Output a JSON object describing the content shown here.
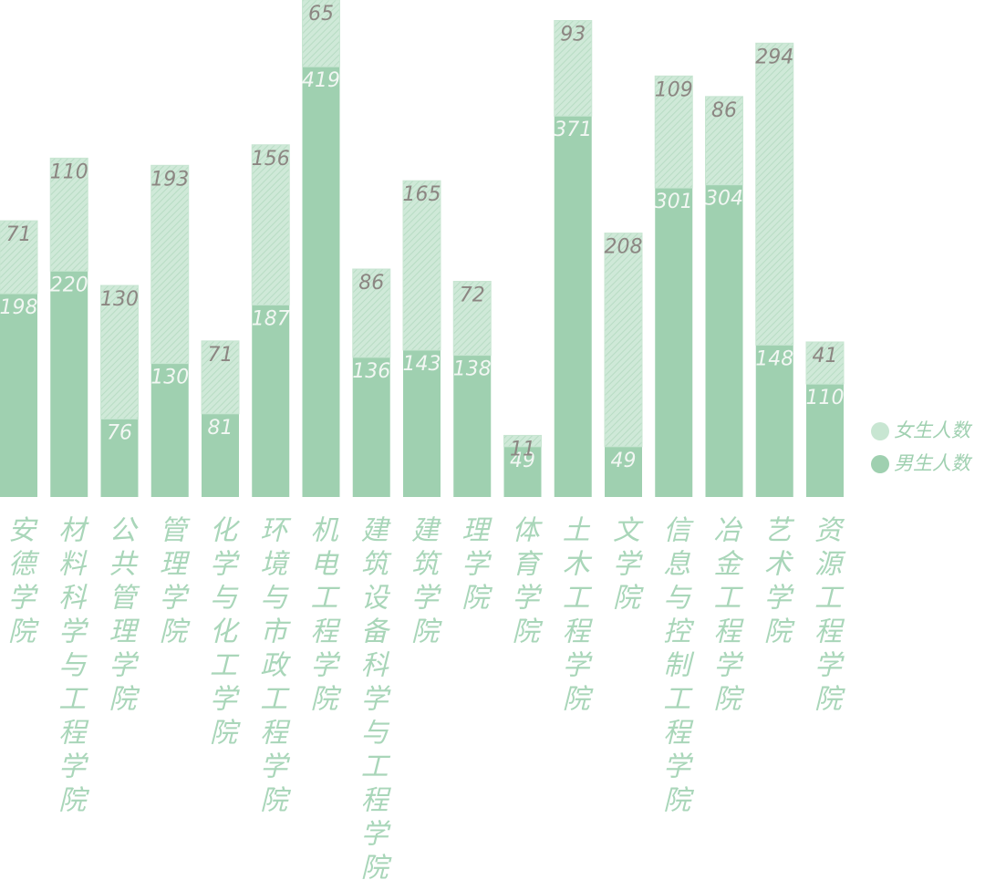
{
  "chart_data": {
    "type": "stacked_bar",
    "categories": [
      "安德学院",
      "材料科学与工程学院",
      "公共管理学院",
      "管理学院",
      "化学与化工学院",
      "环境与市政工程学院",
      "机电工程学院",
      "建筑设备科学与工程学院",
      "建筑学院",
      "理学院",
      "体育学院",
      "土木工程学院",
      "文学院",
      "信息与控制工程学院",
      "冶金工程学院",
      "艺术学院",
      "资源工程学院"
    ],
    "series": [
      {
        "name": "男生人数",
        "color": "#9fd0b0",
        "values": [
          198,
          220,
          76,
          130,
          81,
          187,
          419,
          136,
          143,
          138,
          49,
          371,
          49,
          301,
          304,
          148,
          110
        ]
      },
      {
        "name": "女生人数",
        "color": "#c8e6d2",
        "values": [
          71,
          110,
          130,
          193,
          71,
          156,
          65,
          86,
          165,
          72,
          11,
          93,
          208,
          109,
          86,
          294,
          41
        ]
      }
    ],
    "legend": "right"
  }
}
